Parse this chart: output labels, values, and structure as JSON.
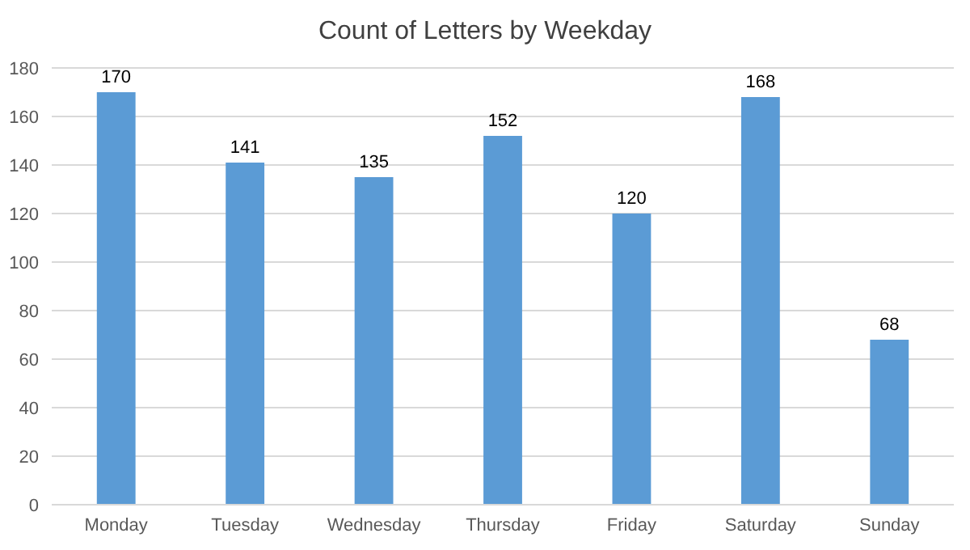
{
  "chart_data": {
    "type": "bar",
    "title": "Count of Letters by Weekday",
    "categories": [
      "Monday",
      "Tuesday",
      "Wednesday",
      "Thursday",
      "Friday",
      "Saturday",
      "Sunday"
    ],
    "values": [
      170,
      141,
      135,
      152,
      120,
      168,
      68
    ],
    "color": "#5b9bd5",
    "ylim": [
      0,
      180
    ],
    "yticks": [
      0,
      20,
      40,
      60,
      80,
      100,
      120,
      140,
      160,
      180
    ],
    "grid": "y",
    "data_labels": true
  }
}
